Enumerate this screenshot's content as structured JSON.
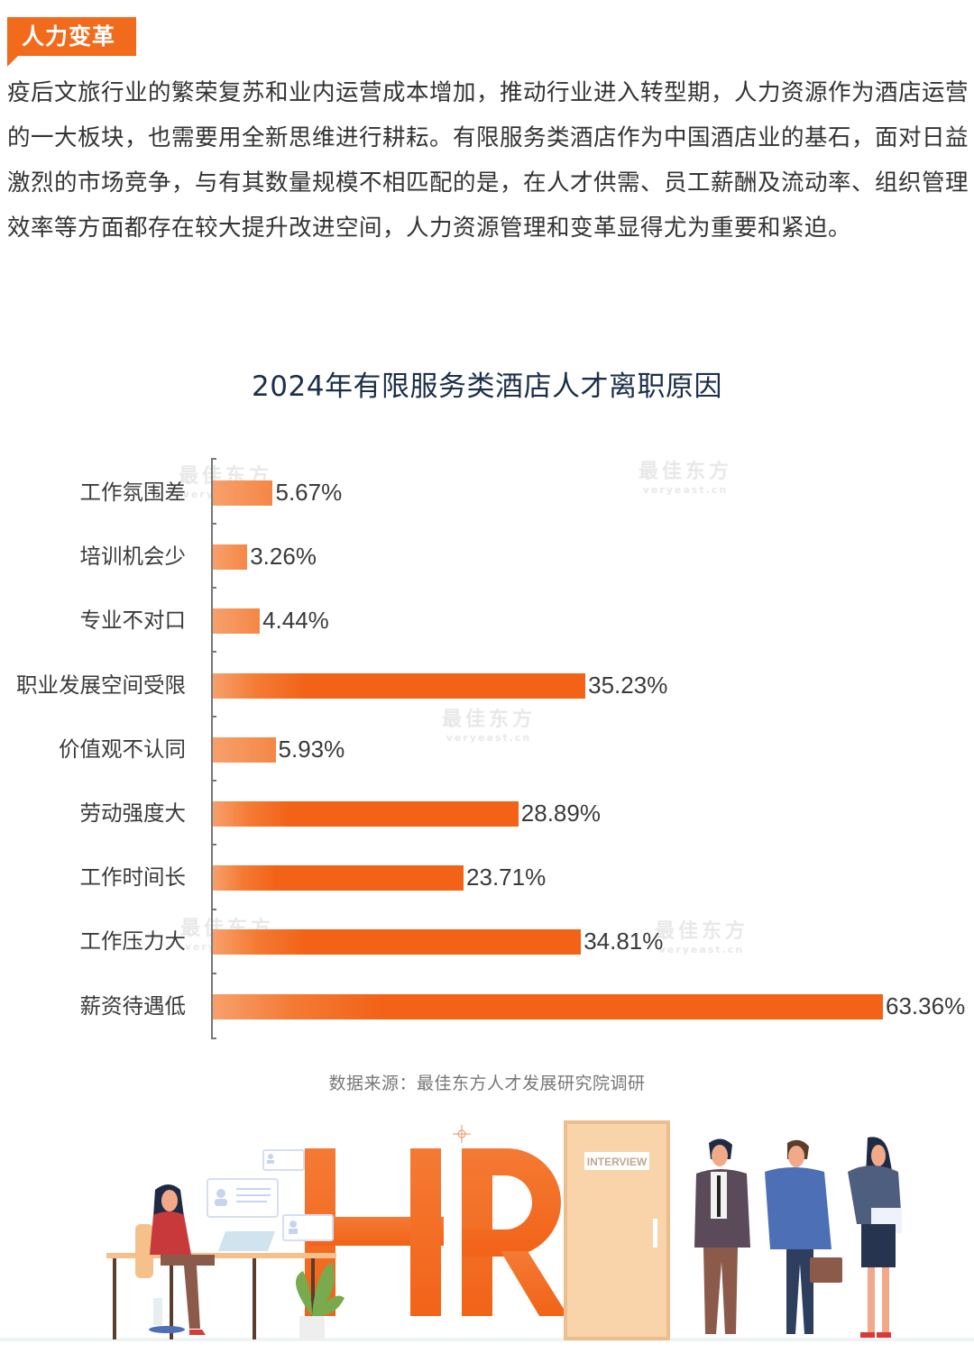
{
  "section_tag": {
    "label": "人力变革",
    "color": "#f26a1b"
  },
  "intro_paragraph": "疫后文旅行业的繁荣复苏和业内运营成本增加，推动行业进入转型期，人力资源作为酒店运营的一大板块，也需要用全新思维进行耕耘。有限服务类酒店作为中国酒店业的基石，面对日益激烈的市场竞争，与有其数量规模不相匹配的是，在人才供需、员工薪酬及流动率、组织管理效率等方面都存在较大提升改进空间，人力资源管理和变革显得尤为重要和紧迫。",
  "watermark": {
    "cn": "最佳东方",
    "en": "veryeast.cn"
  },
  "source_note": "数据来源：最佳东方人才发展研究院调研",
  "illustration": {
    "big_text": "HR",
    "door_sign": "INTERVIEW",
    "accent": "#f26318"
  },
  "chart_data": {
    "type": "bar",
    "orientation": "horizontal",
    "title": "2024年有限服务类酒店人才离职原因",
    "xlabel": "",
    "ylabel": "",
    "unit": "%",
    "categories": [
      "工作氛围差",
      "培训机会少",
      "专业不对口",
      "职业发展空间受限",
      "价值观不认同",
      "劳动强度大",
      "工作时间长",
      "工作压力大",
      "薪资待遇低"
    ],
    "values": [
      5.67,
      3.26,
      4.44,
      35.23,
      5.93,
      28.89,
      23.71,
      34.81,
      63.36
    ],
    "value_labels": [
      "5.67%",
      "3.26%",
      "4.44%",
      "35.23%",
      "5.93%",
      "28.89%",
      "23.71%",
      "34.81%",
      "63.36%"
    ],
    "xlim": [
      0,
      65
    ],
    "grid": false,
    "legend": null,
    "bar_color": "#f26318"
  }
}
